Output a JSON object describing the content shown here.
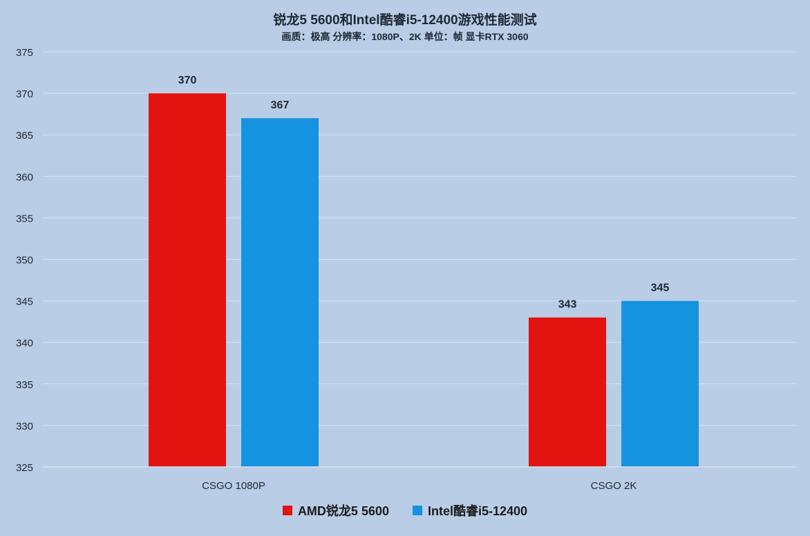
{
  "chart_data": {
    "type": "bar",
    "title": "锐龙5 5600和Intel酷睿i5-12400游戏性能测试",
    "subtitle": "画质：极高  分辨率：1080P、2K  单位：帧  显卡RTX 3060",
    "categories": [
      "CSGO 1080P",
      "CSGO 2K"
    ],
    "series": [
      {
        "name": "AMD锐龙5 5600",
        "values": [
          370,
          343
        ],
        "color": "#e3140f"
      },
      {
        "name": "Intel酷睿i5-12400",
        "values": [
          367,
          345
        ],
        "color": "#1592e0"
      }
    ],
    "ylim": [
      325,
      375
    ],
    "yticks": [
      "375",
      "370",
      "365",
      "360",
      "355",
      "350",
      "345",
      "340",
      "335",
      "330",
      "325"
    ],
    "grid": true,
    "legend_position": "bottom-center"
  }
}
